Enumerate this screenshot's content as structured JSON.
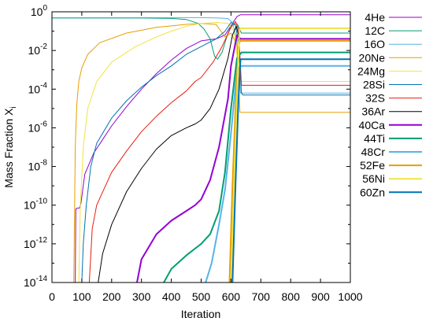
{
  "chart_data": {
    "type": "line",
    "xlabel": "Iteration",
    "ylabel": "Mass Fraction X",
    "ylabel_subscript": "i",
    "y_scale": "log",
    "xlim": [
      0,
      1000
    ],
    "ylim_exponents": [
      -14,
      0
    ],
    "x_ticks": [
      "0",
      "100",
      "200",
      "300",
      "400",
      "500",
      "600",
      "700",
      "800",
      "900",
      "1000"
    ],
    "y_ticks": [
      {
        "base": "10",
        "exp": "0"
      },
      {
        "base": "10",
        "exp": "-2"
      },
      {
        "base": "10",
        "exp": "-4"
      },
      {
        "base": "10",
        "exp": "-6"
      },
      {
        "base": "10",
        "exp": "-8"
      },
      {
        "base": "10",
        "exp": "-10"
      },
      {
        "base": "10",
        "exp": "-12"
      },
      {
        "base": "10",
        "exp": "-14"
      }
    ],
    "legend_position": "right",
    "grid": false,
    "series": [
      {
        "name": "4He",
        "color": "#9400d3",
        "width": 1,
        "points": [
          [
            78,
            -14
          ],
          [
            80,
            -10.2
          ],
          [
            85,
            -10.15
          ],
          [
            92,
            -10.15
          ],
          [
            97,
            -9.9
          ],
          [
            110,
            -8.4
          ],
          [
            140,
            -7.3
          ],
          [
            200,
            -5.9
          ],
          [
            250,
            -4.9
          ],
          [
            300,
            -4
          ],
          [
            350,
            -3.2
          ],
          [
            400,
            -2.5
          ],
          [
            450,
            -1.9
          ],
          [
            500,
            -1.5
          ],
          [
            550,
            -1.4
          ],
          [
            580,
            -1.2
          ],
          [
            605,
            -0.6
          ],
          [
            620,
            -0.25
          ],
          [
            632,
            -0.15
          ],
          [
            1000,
            -0.15
          ]
        ]
      },
      {
        "name": "12C",
        "color": "#009e73",
        "width": 1,
        "points": [
          [
            0,
            -0.32
          ],
          [
            100,
            -0.32
          ],
          [
            200,
            -0.32
          ],
          [
            300,
            -0.32
          ],
          [
            400,
            -0.34
          ],
          [
            450,
            -0.4
          ],
          [
            490,
            -0.6
          ],
          [
            510,
            -0.9
          ],
          [
            530,
            -1.4
          ],
          [
            545,
            -2.3
          ],
          [
            555,
            -2.45
          ],
          [
            570,
            -2.1
          ],
          [
            590,
            -1.1
          ],
          [
            605,
            -0.6
          ],
          [
            622,
            -0.65
          ],
          [
            635,
            -1.1
          ],
          [
            1000,
            -1.1
          ]
        ]
      },
      {
        "name": "16O",
        "color": "#56b4e9",
        "width": 1,
        "points": [
          [
            0,
            -0.3
          ],
          [
            100,
            -0.3
          ],
          [
            200,
            -0.3
          ],
          [
            300,
            -0.3
          ],
          [
            400,
            -0.3
          ],
          [
            500,
            -0.3
          ],
          [
            560,
            -0.32
          ],
          [
            590,
            -0.35
          ],
          [
            605,
            -0.55
          ],
          [
            620,
            -1.5
          ],
          [
            632,
            -4.2
          ],
          [
            640,
            -4.2
          ],
          [
            1000,
            -4.2
          ]
        ]
      },
      {
        "name": "20Ne",
        "color": "#e69f00",
        "width": 1,
        "points": [
          [
            73,
            -14
          ],
          [
            78,
            -7
          ],
          [
            83,
            -4.8
          ],
          [
            90,
            -3.6
          ],
          [
            100,
            -2.9
          ],
          [
            120,
            -2.2
          ],
          [
            160,
            -1.6
          ],
          [
            250,
            -1.1
          ],
          [
            350,
            -0.8
          ],
          [
            450,
            -0.65
          ],
          [
            500,
            -0.6
          ],
          [
            550,
            -0.65
          ],
          [
            580,
            -1.3
          ],
          [
            600,
            -1.1
          ],
          [
            620,
            -1.7
          ],
          [
            630,
            -5.2
          ],
          [
            1000,
            -5.2
          ]
        ]
      },
      {
        "name": "24Mg",
        "color": "#f0e442",
        "width": 1,
        "points": [
          [
            90,
            -14
          ],
          [
            95,
            -10
          ],
          [
            105,
            -7
          ],
          [
            120,
            -5
          ],
          [
            150,
            -3.6
          ],
          [
            200,
            -2.6
          ],
          [
            280,
            -1.8
          ],
          [
            350,
            -1.3
          ],
          [
            400,
            -1.0
          ],
          [
            450,
            -0.75
          ],
          [
            500,
            -0.6
          ],
          [
            550,
            -0.55
          ],
          [
            590,
            -0.6
          ],
          [
            610,
            -1.0
          ],
          [
            630,
            -3.6
          ],
          [
            640,
            -3.6
          ],
          [
            1000,
            -3.6
          ]
        ]
      },
      {
        "name": "28Si",
        "color": "#0072b2",
        "width": 1,
        "points": [
          [
            100,
            -14
          ],
          [
            105,
            -12
          ],
          [
            115,
            -10
          ],
          [
            130,
            -8
          ],
          [
            150,
            -6.8
          ],
          [
            200,
            -5.5
          ],
          [
            250,
            -4.6
          ],
          [
            300,
            -3.9
          ],
          [
            350,
            -3.3
          ],
          [
            400,
            -2.8
          ],
          [
            450,
            -2.2
          ],
          [
            500,
            -1.8
          ],
          [
            550,
            -1.4
          ],
          [
            580,
            -1.0
          ],
          [
            600,
            -0.55
          ],
          [
            615,
            -0.7
          ],
          [
            625,
            -1.6
          ],
          [
            635,
            -4.2
          ],
          [
            640,
            -4.3
          ],
          [
            1000,
            -4.3
          ]
        ]
      },
      {
        "name": "32S",
        "color": "#e51e10",
        "width": 1,
        "points": [
          [
            125,
            -14
          ],
          [
            135,
            -11.2
          ],
          [
            150,
            -10
          ],
          [
            200,
            -8.3
          ],
          [
            250,
            -7.2
          ],
          [
            300,
            -6.2
          ],
          [
            350,
            -5.4
          ],
          [
            400,
            -4.7
          ],
          [
            450,
            -4.1
          ],
          [
            480,
            -3.6
          ],
          [
            500,
            -3.4
          ],
          [
            540,
            -2.6
          ],
          [
            570,
            -1.8
          ],
          [
            600,
            -0.8
          ],
          [
            615,
            -0.5
          ],
          [
            625,
            -0.9
          ],
          [
            635,
            -3.8
          ],
          [
            1000,
            -3.8
          ]
        ]
      },
      {
        "name": "36Ar",
        "color": "#000000",
        "width": 1,
        "points": [
          [
            155,
            -14
          ],
          [
            170,
            -12.5
          ],
          [
            200,
            -11
          ],
          [
            250,
            -9.3
          ],
          [
            300,
            -8.1
          ],
          [
            350,
            -7.1
          ],
          [
            400,
            -6.4
          ],
          [
            450,
            -6.0
          ],
          [
            480,
            -5.8
          ],
          [
            500,
            -5.6
          ],
          [
            530,
            -5.0
          ],
          [
            560,
            -4.0
          ],
          [
            590,
            -2.4
          ],
          [
            605,
            -1.2
          ],
          [
            618,
            -0.75
          ],
          [
            630,
            -1.5
          ],
          [
            1000,
            -1.5
          ]
        ]
      },
      {
        "name": "40Ca",
        "color": "#9400d3",
        "width": 2,
        "points": [
          [
            285,
            -14
          ],
          [
            300,
            -12.8
          ],
          [
            350,
            -11.5
          ],
          [
            400,
            -10.8
          ],
          [
            450,
            -10.3
          ],
          [
            480,
            -10.0
          ],
          [
            500,
            -9.7
          ],
          [
            530,
            -8.7
          ],
          [
            560,
            -7.0
          ],
          [
            590,
            -4.5
          ],
          [
            600,
            -2.8
          ],
          [
            620,
            -1.2
          ],
          [
            632,
            -1.4
          ],
          [
            640,
            -1.4
          ],
          [
            1000,
            -1.4
          ]
        ]
      },
      {
        "name": "44Ti",
        "color": "#009e73",
        "width": 2,
        "points": [
          [
            375,
            -14
          ],
          [
            400,
            -13.3
          ],
          [
            450,
            -12.6
          ],
          [
            500,
            -12.0
          ],
          [
            530,
            -11.5
          ],
          [
            560,
            -10.3
          ],
          [
            580,
            -8.3
          ],
          [
            600,
            -5.0
          ],
          [
            620,
            -2.4
          ],
          [
            635,
            -2.1
          ],
          [
            1000,
            -2.1
          ]
        ]
      },
      {
        "name": "48Cr",
        "color": "#56b4e9",
        "width": 2,
        "points": [
          [
            515,
            -14
          ],
          [
            535,
            -13.0
          ],
          [
            560,
            -11.0
          ],
          [
            580,
            -9.2
          ],
          [
            600,
            -6.3
          ],
          [
            620,
            -3.0
          ],
          [
            635,
            -2.8
          ],
          [
            1000,
            -2.8
          ]
        ]
      },
      {
        "name": "52Fe",
        "color": "#e69f00",
        "width": 2,
        "points": [
          [
            595,
            -14
          ],
          [
            605,
            -9
          ],
          [
            615,
            -5
          ],
          [
            625,
            -1.8
          ],
          [
            630,
            -1.5
          ],
          [
            1000,
            -1.5
          ]
        ]
      },
      {
        "name": "56Ni",
        "color": "#f0e442",
        "width": 2,
        "points": [
          [
            600,
            -14
          ],
          [
            610,
            -9
          ],
          [
            620,
            -4.5
          ],
          [
            628,
            -1.0
          ],
          [
            632,
            -0.85
          ],
          [
            1000,
            -0.85
          ]
        ]
      },
      {
        "name": "60Zn",
        "color": "#0072b2",
        "width": 2,
        "points": [
          [
            605,
            -14
          ],
          [
            615,
            -9
          ],
          [
            625,
            -4.5
          ],
          [
            632,
            -2.45
          ],
          [
            640,
            -2.45
          ],
          [
            1000,
            -2.45
          ]
        ]
      }
    ]
  }
}
